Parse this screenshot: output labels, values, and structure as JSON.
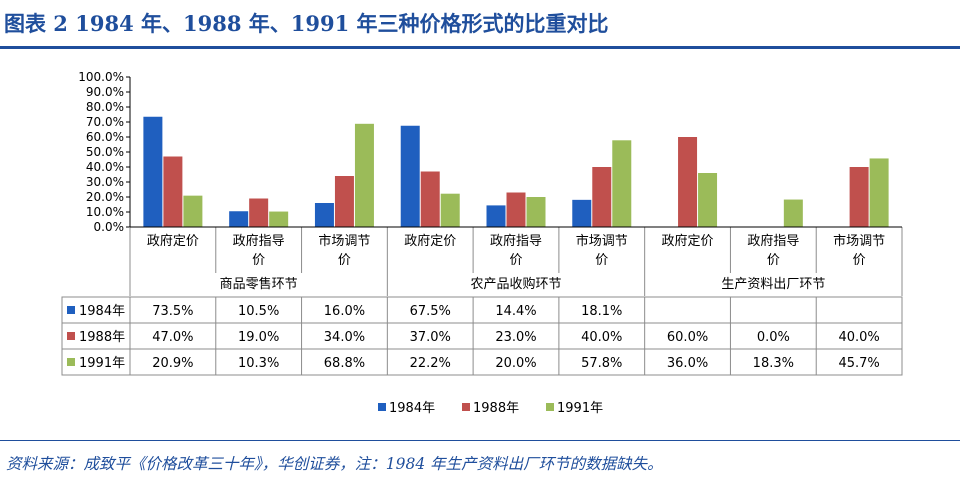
{
  "title": "图表 2   1984 年、1988 年、1991 年三种价格形式的比重对比",
  "source": "资料来源：成致平《价格改革三十年》，华创证券，注：1984 年生产资料出厂环节的数据缺失。",
  "colors": {
    "brand": "#1f4e9c",
    "series": [
      "#1f5fbf",
      "#c0504d",
      "#9bbb59"
    ]
  },
  "chart_data": {
    "type": "bar",
    "groups": [
      "商品零售环节",
      "农产品收购环节",
      "生产资料出厂环节"
    ],
    "categories": [
      "政府定价",
      "政府指导价",
      "市场调节价",
      "政府定价",
      "政府指导价",
      "市场调节价",
      "政府定价",
      "政府指导价",
      "市场调节价"
    ],
    "category_lines": [
      [
        "政府定价"
      ],
      [
        "政府指导",
        "价"
      ],
      [
        "市场调节",
        "价"
      ],
      [
        "政府定价"
      ],
      [
        "政府指导",
        "价"
      ],
      [
        "市场调节",
        "价"
      ],
      [
        "政府定价"
      ],
      [
        "政府指导",
        "价"
      ],
      [
        "市场调节",
        "价"
      ]
    ],
    "series": [
      {
        "name": "1984年",
        "values": [
          73.5,
          10.5,
          16.0,
          67.5,
          14.4,
          18.1,
          null,
          null,
          null
        ],
        "labels": [
          "73.5%",
          "10.5%",
          "16.0%",
          "67.5%",
          "14.4%",
          "18.1%",
          "",
          "",
          ""
        ]
      },
      {
        "name": "1988年",
        "values": [
          47.0,
          19.0,
          34.0,
          37.0,
          23.0,
          40.0,
          60.0,
          0.0,
          40.0
        ],
        "labels": [
          "47.0%",
          "19.0%",
          "34.0%",
          "37.0%",
          "23.0%",
          "40.0%",
          "60.0%",
          "0.0%",
          "40.0%"
        ]
      },
      {
        "name": "1991年",
        "values": [
          20.9,
          10.3,
          68.8,
          22.2,
          20.0,
          57.8,
          36.0,
          18.3,
          45.7
        ],
        "labels": [
          "20.9%",
          "10.3%",
          "68.8%",
          "22.2%",
          "20.0%",
          "57.8%",
          "36.0%",
          "18.3%",
          "45.7%"
        ]
      }
    ],
    "y_ticks": [
      "0.0%",
      "10.0%",
      "20.0%",
      "30.0%",
      "40.0%",
      "50.0%",
      "60.0%",
      "70.0%",
      "80.0%",
      "90.0%",
      "100.0%"
    ],
    "ylim": [
      0,
      100
    ],
    "grid": false,
    "legend_position": "bottom",
    "table_below": true
  }
}
